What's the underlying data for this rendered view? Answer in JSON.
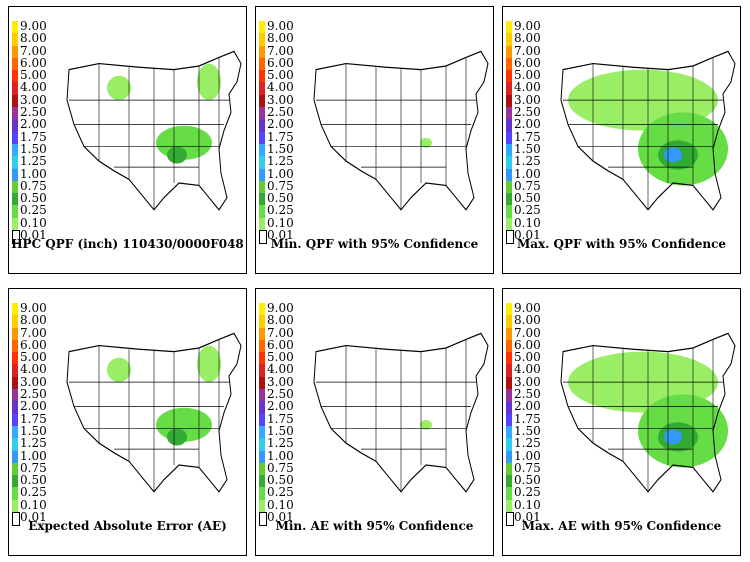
{
  "legend": {
    "levels": [
      "9.00",
      "8.00",
      "7.00",
      "6.00",
      "5.00",
      "4.00",
      "3.00",
      "2.50",
      "2.00",
      "1.75",
      "1.50",
      "1.25",
      "1.00",
      "0.75",
      "0.50",
      "0.25",
      "0.10",
      "0.01"
    ],
    "colors": [
      "#ffee00",
      "#ffcc00",
      "#ff9900",
      "#ff6600",
      "#ff3300",
      "#dd2222",
      "#aa1111",
      "#993399",
      "#6633cc",
      "#5544ff",
      "#33aaff",
      "#33ccee",
      "#3399ff",
      "#66cc33",
      "#33aa33",
      "#66dd44",
      "#99ee66",
      "#ffffff"
    ]
  },
  "panels": [
    {
      "caption": "HPC QPF (inch) 110430/0000F048",
      "intensity": "mid"
    },
    {
      "caption": "Min. QPF with 95% Confidence",
      "intensity": "low"
    },
    {
      "caption": "Max. QPF with 95% Confidence",
      "intensity": "high"
    },
    {
      "caption": "Expected Absolute Error (AE)",
      "intensity": "mid"
    },
    {
      "caption": "Min. AE with 95% Confidence",
      "intensity": "low"
    },
    {
      "caption": "Max. AE with 95% Confidence",
      "intensity": "high"
    }
  ]
}
